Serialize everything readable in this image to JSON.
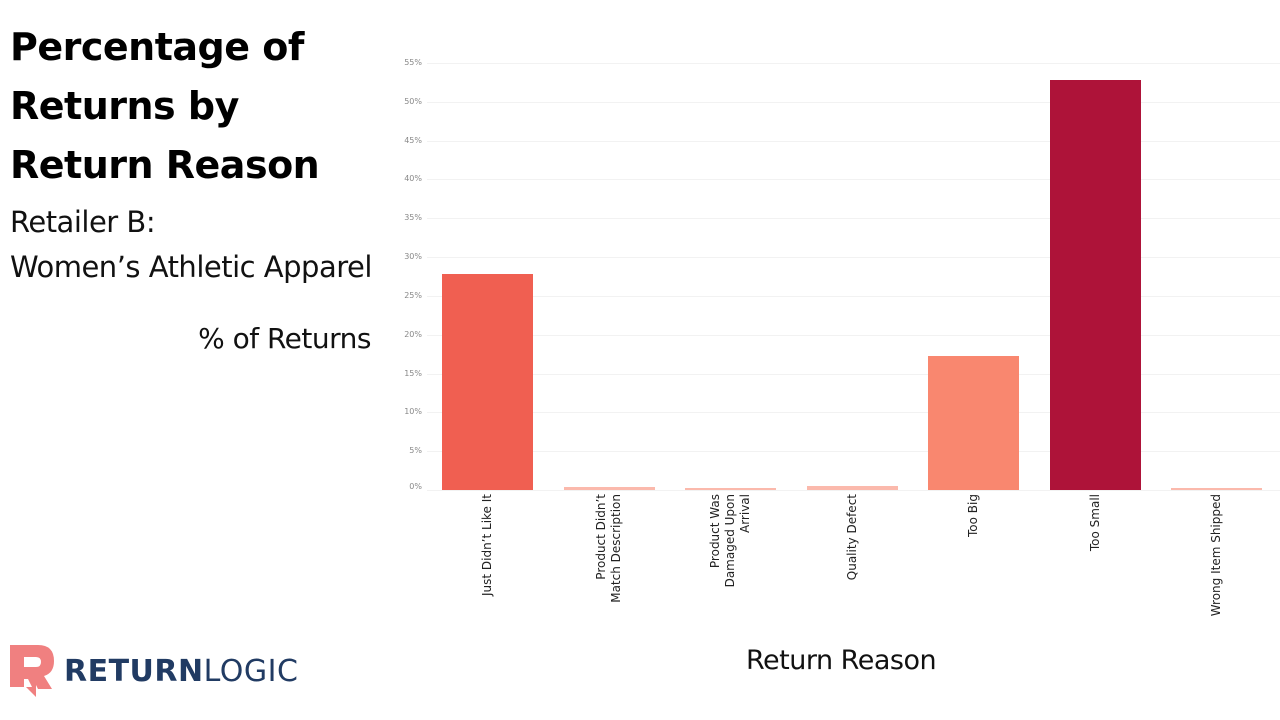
{
  "title": "Percentage of Returns by Return Reason",
  "subtitle_line1": "Retailer B:",
  "subtitle_line2": "Women’s Athletic Apparel",
  "logo": {
    "bold": "RETURN",
    "light": "LOGIC",
    "mark_color": "#f08080",
    "text_color": "#213b63"
  },
  "chart_data": {
    "type": "bar",
    "title": "Percentage of Returns by Return Reason",
    "subtitle": "Retailer B: Women’s Athletic Apparel",
    "xlabel": "Return Reason",
    "ylabel": "% of Returns",
    "ylim": [
      0,
      55
    ],
    "yticks": [
      "0%",
      "5%",
      "10%",
      "15%",
      "20%",
      "25%",
      "30%",
      "35%",
      "40%",
      "45%",
      "50%",
      "55%"
    ],
    "grid": true,
    "legend": "none",
    "categories": [
      "Just Didn’t Like It",
      "Product Didn’t Match Description",
      "Product Was Damaged Upon Arrival",
      "Quality Defect",
      "Too Big",
      "Too Small",
      "Wrong Item Shipped"
    ],
    "category_label_lines": [
      [
        "Just Didn’t Like It"
      ],
      [
        "Product Didn’t",
        "Match Description"
      ],
      [
        "Product Was",
        "Damaged Upon",
        "Arrival"
      ],
      [
        "Quality Defect"
      ],
      [
        "Too Big"
      ],
      [
        "Too Small"
      ],
      [
        "Wrong Item Shipped"
      ]
    ],
    "values": [
      27.8,
      0.4,
      0.2,
      0.5,
      17.2,
      52.8,
      0.3
    ],
    "colors": [
      "#f05f51",
      "#fbb9ac",
      "#fbb9ac",
      "#fbb9ac",
      "#f9876f",
      "#ae1339",
      "#fbb9ac"
    ]
  }
}
